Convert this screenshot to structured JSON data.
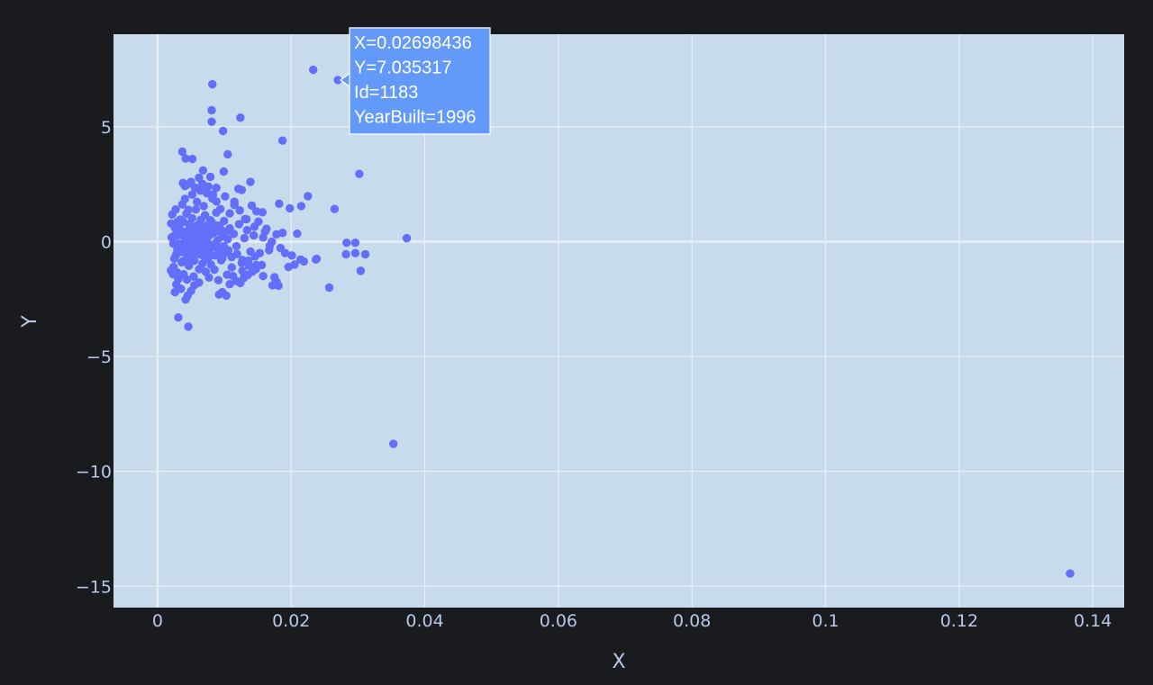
{
  "chart_data": {
    "type": "scatter",
    "xlabel": "X",
    "ylabel": "Y",
    "xlim": [
      -0.0066,
      0.1447
    ],
    "ylim": [
      -15.93,
      9.03
    ],
    "x_ticks": [
      0,
      0.02,
      0.04,
      0.06,
      0.08,
      0.1,
      0.12,
      0.14
    ],
    "x_tick_labels": [
      "0",
      "0.02",
      "0.04",
      "0.06",
      "0.08",
      "0.1",
      "0.12",
      "0.14"
    ],
    "y_ticks": [
      -15,
      -10,
      -5,
      0,
      5
    ],
    "y_tick_labels": [
      "−15",
      "−10",
      "−5",
      "0",
      "5"
    ],
    "grid": true,
    "colors": {
      "page_bg": "#191b1e",
      "plot_bg": "#c8dbec",
      "grid": "#e9eef4",
      "marker": "#636efa",
      "tooltip_bg": "#6399f8",
      "tooltip_border": "#ffffff",
      "text": "#b8c7e8"
    },
    "series": [
      {
        "points": [
          [
            0.00204,
            0.79
          ],
          [
            0.00236,
            -0.09
          ],
          [
            0.00248,
            0.25
          ],
          [
            0.0026,
            0.6
          ],
          [
            0.00276,
            -0.58
          ],
          [
            0.00284,
            0.25
          ],
          [
            0.00295,
            -0.37
          ],
          [
            0.0031,
            0.46
          ],
          [
            0.00322,
            -0.1
          ],
          [
            0.00339,
            0.96
          ],
          [
            0.0035,
            -0.45
          ],
          [
            0.00361,
            0.28
          ],
          [
            0.00372,
            -0.86
          ],
          [
            0.00383,
            0.87
          ],
          [
            0.00398,
            -0.05
          ],
          [
            0.00408,
            0.42
          ],
          [
            0.00421,
            -0.3
          ],
          [
            0.00432,
            1.21
          ],
          [
            0.00442,
            -0.63
          ],
          [
            0.00455,
            0.08
          ],
          [
            0.00468,
            -1.05
          ],
          [
            0.00482,
            0.64
          ],
          [
            0.00491,
            0.1
          ],
          [
            0.00505,
            -0.46
          ],
          [
            0.00518,
            1.02
          ],
          [
            0.00526,
            -0.12
          ],
          [
            0.00537,
            0.51
          ],
          [
            0.00549,
            -0.83
          ],
          [
            0.00562,
            0.2
          ],
          [
            0.00572,
            1.4
          ],
          [
            0.00588,
            -0.34
          ],
          [
            0.00597,
            0.67
          ],
          [
            0.00609,
            -0.05
          ],
          [
            0.00622,
            -1.2
          ],
          [
            0.00635,
            0.35
          ],
          [
            0.00648,
            0.95
          ],
          [
            0.00659,
            -0.58
          ],
          [
            0.00671,
            0.12
          ],
          [
            0.00684,
            0.55
          ],
          [
            0.00697,
            -0.27
          ],
          [
            0.00711,
            1.15
          ],
          [
            0.00725,
            -0.76
          ],
          [
            0.00738,
            0.03
          ],
          [
            0.00752,
            0.73
          ],
          [
            0.00768,
            -0.41
          ],
          [
            0.00781,
            0.29
          ],
          [
            0.00799,
            -1.0
          ],
          [
            0.00813,
            0.84
          ],
          [
            0.00829,
            -0.15
          ],
          [
            0.00844,
            0.47
          ],
          [
            0.00861,
            -0.6
          ],
          [
            0.00878,
            1.26
          ],
          [
            0.00895,
            0.05
          ],
          [
            0.00912,
            -0.32
          ],
          [
            0.00931,
            0.62
          ],
          [
            0.00952,
            -0.81
          ],
          [
            0.00971,
            0.22
          ],
          [
            0.00995,
            0.9
          ],
          [
            0.0102,
            -0.47
          ],
          [
            0.0105,
            0.11
          ],
          [
            0.0108,
            0.58
          ],
          [
            0.0111,
            -0.67
          ],
          [
            0.0114,
            0.34
          ],
          [
            0.0118,
            -0.2
          ],
          [
            0.0122,
            0.76
          ],
          [
            0.0126,
            -0.93
          ],
          [
            0.013,
            0.15
          ],
          [
            0.0134,
            0.5
          ],
          [
            0.0139,
            -0.43
          ],
          [
            0.0144,
            0.27
          ],
          [
            0.0022,
            1.18
          ],
          [
            0.0024,
            -1.1
          ],
          [
            0.0027,
            1.4
          ],
          [
            0.0029,
            -1.33
          ],
          [
            0.0032,
            0.33
          ],
          [
            0.0034,
            -0.22
          ],
          [
            0.0037,
            1.62
          ],
          [
            0.0039,
            -1.42
          ],
          [
            0.0041,
            1.86
          ],
          [
            0.0044,
            -1.65
          ],
          [
            0.0047,
            0.75
          ],
          [
            0.0049,
            -0.9
          ],
          [
            0.0052,
            2.05
          ],
          [
            0.0054,
            -1.52
          ],
          [
            0.0057,
            0.42
          ],
          [
            0.0059,
            1.73
          ],
          [
            0.0062,
            -1.78
          ],
          [
            0.0064,
            2.22
          ],
          [
            0.0067,
            -0.96
          ],
          [
            0.0069,
            1.55
          ],
          [
            0.0072,
            -1.31
          ],
          [
            0.0074,
            2.1
          ],
          [
            0.0077,
            -1.56
          ],
          [
            0.0079,
            0.93
          ],
          [
            0.0082,
            1.88
          ],
          [
            0.0085,
            -1.22
          ],
          [
            0.0088,
            2.34
          ],
          [
            0.0091,
            -1.68
          ],
          [
            0.0094,
            1.42
          ],
          [
            0.0097,
            -0.73
          ],
          [
            0.0101,
            1.97
          ],
          [
            0.0104,
            -1.44
          ],
          [
            0.0108,
            1.23
          ],
          [
            0.0111,
            -1.12
          ],
          [
            0.0115,
            1.74
          ],
          [
            0.0119,
            -0.54
          ],
          [
            0.0123,
            1.36
          ],
          [
            0.0127,
            -1.27
          ],
          [
            0.0131,
            0.98
          ],
          [
            0.0136,
            -0.83
          ],
          [
            0.0141,
            1.57
          ],
          [
            0.0146,
            -0.64
          ],
          [
            0.0151,
            0.87
          ],
          [
            0.0156,
            -1.02
          ],
          [
            0.0161,
            0.44
          ],
          [
            0.0021,
            0.18
          ],
          [
            0.0025,
            -0.74
          ],
          [
            0.003,
            0.86
          ],
          [
            0.0033,
            0.57
          ],
          [
            0.0036,
            -0.9
          ],
          [
            0.004,
            0.36
          ],
          [
            0.0043,
            -0.18
          ],
          [
            0.0046,
            1.38
          ],
          [
            0.0048,
            -0.32
          ],
          [
            0.0051,
            0.29
          ],
          [
            0.0053,
            -0.75
          ],
          [
            0.0056,
            0.66
          ],
          [
            0.0058,
            0.0
          ],
          [
            0.0061,
            -0.53
          ],
          [
            0.0063,
            0.8
          ],
          [
            0.0066,
            -0.36
          ],
          [
            0.0068,
            0.48
          ],
          [
            0.0071,
            -0.18
          ],
          [
            0.0073,
            0.24
          ],
          [
            0.0076,
            -0.7
          ],
          [
            0.0078,
            0.58
          ],
          [
            0.0081,
            -0.25
          ],
          [
            0.0084,
            0.38
          ],
          [
            0.0087,
            -0.08
          ],
          [
            0.009,
            0.7
          ],
          [
            0.0093,
            -0.55
          ],
          [
            0.0096,
            0.32
          ],
          [
            0.0099,
            -0.2
          ],
          [
            0.0103,
            0.45
          ],
          [
            0.0106,
            -0.38
          ],
          [
            0.002,
            -1.25
          ],
          [
            0.0023,
            -1.42
          ],
          [
            0.0026,
            -2.2
          ],
          [
            0.0028,
            -1.86
          ],
          [
            0.0031,
            -1.63
          ],
          [
            0.0035,
            -2.05
          ],
          [
            0.0042,
            -2.52
          ],
          [
            0.0045,
            -2.35
          ],
          [
            0.005,
            -2.15
          ],
          [
            0.0055,
            -1.9
          ],
          [
            0.0038,
            2.55
          ],
          [
            0.0041,
            2.42
          ],
          [
            0.0045,
            2.5
          ],
          [
            0.005,
            2.6
          ],
          [
            0.0056,
            2.35
          ],
          [
            0.0062,
            2.78
          ],
          [
            0.0067,
            2.52
          ],
          [
            0.0071,
            2.28
          ],
          [
            0.0076,
            2.4
          ],
          [
            0.0083,
            2.05
          ],
          [
            0.0088,
            1.75
          ],
          [
            0.0092,
            -2.3
          ],
          [
            0.0097,
            -2.2
          ],
          [
            0.0103,
            -2.35
          ],
          [
            0.0108,
            -1.85
          ],
          [
            0.0113,
            -1.5
          ],
          [
            0.0118,
            -1.72
          ],
          [
            0.0124,
            -1.8
          ],
          [
            0.0129,
            -1.58
          ],
          [
            0.0135,
            -1.45
          ],
          [
            0.0142,
            -1.3
          ],
          [
            0.0148,
            -1.02
          ],
          [
            0.0153,
            -0.5
          ],
          [
            0.0158,
            0.18
          ],
          [
            0.0163,
            0.56
          ],
          [
            0.0167,
            -0.37
          ],
          [
            0.0171,
            0.0
          ],
          [
            0.0175,
            -1.55
          ],
          [
            0.0178,
            -1.75
          ],
          [
            0.0181,
            -1.92
          ],
          [
            0.0172,
            -1.9
          ],
          [
            0.0158,
            -1.5
          ],
          [
            0.0147,
            -1.2
          ],
          [
            0.0137,
            -1.05
          ],
          [
            0.0127,
            -0.8
          ],
          [
            0.0184,
            -0.28
          ],
          [
            0.0187,
            0.38
          ],
          [
            0.0191,
            -0.5
          ],
          [
            0.0196,
            -1.1
          ],
          [
            0.0201,
            -0.6
          ],
          [
            0.0205,
            -1.0
          ],
          [
            0.0209,
            0.35
          ],
          [
            0.0214,
            -0.78
          ],
          [
            0.0219,
            -0.86
          ],
          [
            0.0238,
            -0.75
          ],
          [
            0.0182,
            1.65
          ],
          [
            0.0198,
            1.45
          ],
          [
            0.0215,
            1.55
          ],
          [
            0.0225,
            1.98
          ],
          [
            0.0265,
            1.42
          ],
          [
            0.0139,
            2.6
          ],
          [
            0.0126,
            2.25
          ],
          [
            0.0121,
            2.3
          ],
          [
            0.0115,
            1.6
          ],
          [
            0.0148,
            1.32
          ],
          [
            0.0157,
            1.28
          ],
          [
            0.0133,
            0.98
          ],
          [
            0.0145,
            0.65
          ],
          [
            0.0168,
            -0.18
          ],
          [
            0.0178,
            0.32
          ],
          [
            0.0283,
            -0.05
          ],
          [
            0.0296,
            -0.05
          ],
          [
            0.0282,
            -0.55
          ],
          [
            0.0296,
            -0.5
          ],
          [
            0.0311,
            -0.55
          ],
          [
            0.0304,
            -1.27
          ],
          [
            0.0257,
            -2.0
          ],
          [
            0.0237,
            -0.78
          ],
          [
            0.0373,
            0.15
          ],
          [
            0.0302,
            2.95
          ],
          [
            0.0037,
            3.92
          ],
          [
            0.0042,
            3.62
          ],
          [
            0.0052,
            3.6
          ],
          [
            0.0068,
            3.1
          ],
          [
            0.0079,
            2.82
          ],
          [
            0.0099,
            3.05
          ],
          [
            0.0105,
            3.8
          ],
          [
            0.0098,
            4.82
          ],
          [
            0.0187,
            4.4
          ],
          [
            0.0124,
            5.4
          ],
          [
            0.0081,
            5.22
          ],
          [
            0.0081,
            5.72
          ],
          [
            0.0082,
            6.85
          ],
          [
            0.0233,
            7.48
          ],
          [
            0.0269844,
            7.035317
          ],
          [
            0.0031,
            -3.3
          ],
          [
            0.0046,
            -3.7
          ],
          [
            0.0353,
            -8.8
          ],
          [
            0.1366,
            -14.45
          ]
        ]
      }
    ],
    "tooltip": {
      "lines": [
        "X=0.02698436",
        "Y=7.035317",
        "Id=1183",
        "YearBuilt=1996"
      ],
      "point": [
        0.0269844,
        7.035317
      ]
    }
  }
}
